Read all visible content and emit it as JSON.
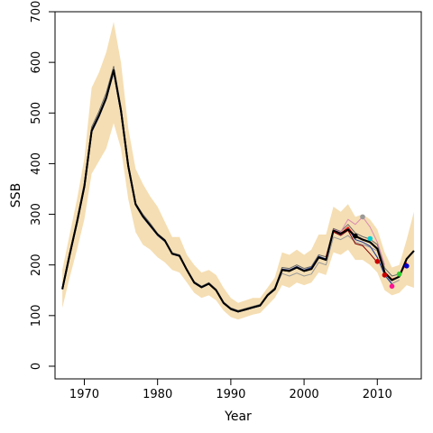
{
  "chart_data": {
    "type": "line",
    "title": "",
    "xlabel": "Year",
    "ylabel": "SSB",
    "xlim": [
      1966,
      2016
    ],
    "ylim": [
      -25,
      700
    ],
    "xticks": [
      1970,
      1980,
      1990,
      2000,
      2010
    ],
    "yticks": [
      0,
      100,
      200,
      300,
      400,
      500,
      600,
      700
    ],
    "grid": false,
    "legend": "none",
    "colors": {
      "band": "#f5deb3",
      "main_line": "#000000",
      "retro_lines": [
        "#666666",
        "#999999",
        "#1f3a93",
        "#d98cb3",
        "#800000"
      ],
      "retro_red": "#ff0000",
      "peel_points": [
        "#000000",
        "#999999",
        "#00ced1",
        "#cc0000",
        "#cc0000",
        "#ff1493",
        "#32cd32",
        "#0000cd"
      ]
    },
    "band_upper": {
      "x": [
        1967,
        1968,
        1969,
        1970,
        1971,
        1972,
        1973,
        1974,
        1975,
        1976,
        1977,
        1978,
        1979,
        1980,
        1981,
        1982,
        1983,
        1984,
        1985,
        1986,
        1987,
        1988,
        1989,
        1990,
        1991,
        1992,
        1993,
        1994,
        1995,
        1996,
        1997,
        1998,
        1999,
        2000,
        2001,
        2002,
        2003,
        2004,
        2005,
        2006,
        2007,
        2008,
        2009,
        2010,
        2011,
        2012,
        2013,
        2014,
        2015
      ],
      "y": [
        190,
        260,
        330,
        410,
        550,
        580,
        620,
        680,
        600,
        470,
        390,
        360,
        335,
        315,
        285,
        255,
        255,
        220,
        200,
        185,
        190,
        180,
        155,
        135,
        125,
        130,
        135,
        135,
        155,
        175,
        225,
        220,
        230,
        220,
        230,
        260,
        260,
        315,
        305,
        320,
        295,
        300,
        290,
        270,
        225,
        195,
        200,
        250,
        305
      ]
    },
    "band_lower": {
      "x": [
        1967,
        1968,
        1969,
        1970,
        1971,
        1972,
        1973,
        1974,
        1975,
        1976,
        1977,
        1978,
        1979,
        1980,
        1981,
        1982,
        1983,
        1984,
        1985,
        1986,
        1987,
        1988,
        1989,
        1990,
        1991,
        1992,
        1993,
        1994,
        1995,
        1996,
        1997,
        1998,
        1999,
        2000,
        2001,
        2002,
        2003,
        2004,
        2005,
        2006,
        2007,
        2008,
        2009,
        2010,
        2011,
        2012,
        2013,
        2014,
        2015
      ],
      "y": [
        115,
        175,
        230,
        290,
        380,
        405,
        430,
        480,
        430,
        330,
        265,
        240,
        230,
        215,
        205,
        190,
        185,
        165,
        145,
        135,
        140,
        130,
        110,
        97,
        92,
        97,
        102,
        105,
        120,
        135,
        160,
        155,
        165,
        160,
        165,
        185,
        180,
        225,
        220,
        230,
        210,
        210,
        200,
        185,
        150,
        140,
        145,
        160,
        155
      ]
    },
    "series": [
      {
        "x": [
          1967,
          1968,
          1969,
          1970,
          1971,
          1972,
          1973,
          1974,
          1975,
          1976,
          1977,
          1978,
          1979,
          1980,
          1981,
          1982,
          1983,
          1984,
          1985,
          1986,
          1987,
          1988,
          1989,
          1990,
          1991,
          1992,
          1993,
          1994,
          1995,
          1996,
          1997,
          1998,
          1999,
          2000,
          2001,
          2002,
          2003,
          2004,
          2005,
          2006,
          2007,
          2008,
          2009,
          2010,
          2011,
          2012,
          2013,
          2014,
          2015
        ],
        "y": [
          152,
          220,
          285,
          355,
          465,
          495,
          530,
          585,
          505,
          395,
          320,
          296,
          278,
          260,
          248,
          222,
          218,
          190,
          165,
          156,
          163,
          150,
          125,
          113,
          108,
          112,
          116,
          120,
          140,
          152,
          190,
          188,
          195,
          188,
          192,
          215,
          210,
          268,
          262,
          270,
          257,
          250,
          245,
          232,
          185,
          170,
          177,
          212,
          228
        ]
      },
      {
        "x": [
          1967,
          1968,
          1969,
          1970,
          1971,
          1972,
          1973,
          1974,
          1975,
          1976,
          1977,
          1978,
          1979,
          1980,
          1981,
          1982,
          1983,
          1984,
          1985,
          1986,
          1987,
          1988,
          1989,
          1990,
          1991,
          1992,
          1993,
          1994,
          1995,
          1996,
          1997,
          1998,
          1999,
          2000,
          2001,
          2002,
          2003,
          2004,
          2005,
          2006,
          2007,
          2008,
          2009,
          2010,
          2011,
          2012,
          2013,
          2014
        ],
        "y": [
          154,
          224,
          290,
          362,
          472,
          503,
          540,
          592,
          512,
          398,
          322,
          300,
          282,
          262,
          250,
          224,
          220,
          192,
          167,
          158,
          165,
          152,
          127,
          115,
          110,
          114,
          118,
          122,
          142,
          155,
          195,
          193,
          200,
          193,
          197,
          220,
          216,
          272,
          266,
          280,
          263,
          256,
          251,
          240,
          194,
          178,
          182,
          203
        ]
      },
      {
        "x": [
          1967,
          1968,
          1969,
          1970,
          1971,
          1972,
          1973,
          1974,
          1975,
          1976,
          1977,
          1978,
          1979,
          1980,
          1981,
          1982,
          1983,
          1984,
          1985,
          1986,
          1987,
          1988,
          1989,
          1990,
          1991,
          1992,
          1993,
          1994,
          1995,
          1996,
          1997,
          1998,
          1999,
          2000,
          2001,
          2002,
          2003,
          2004,
          2005,
          2006,
          2007,
          2008,
          2009,
          2010,
          2011,
          2012,
          2013
        ],
        "y": [
          153,
          221,
          287,
          358,
          468,
          498,
          534,
          588,
          508,
          396,
          321,
          298,
          280,
          261,
          249,
          223,
          219,
          191,
          166,
          157,
          164,
          151,
          126,
          114,
          109,
          113,
          117,
          121,
          141,
          153,
          183,
          178,
          184,
          178,
          182,
          205,
          200,
          255,
          250,
          258,
          245,
          240,
          235,
          228,
          185,
          163,
          170
        ]
      },
      {
        "x": [
          1967,
          1968,
          1969,
          1970,
          1971,
          1972,
          1973,
          1974,
          1975,
          1976,
          1977,
          1978,
          1979,
          1980,
          1981,
          1982,
          1983,
          1984,
          1985,
          1986,
          1987,
          1988,
          1989,
          1990,
          1991,
          1992,
          1993,
          1994,
          1995,
          1996,
          1997,
          1998,
          1999,
          2000,
          2001,
          2002,
          2003,
          2004,
          2005,
          2006,
          2007,
          2008,
          2009,
          2010,
          2011,
          2012
        ],
        "y": [
          152,
          219,
          284,
          353,
          462,
          492,
          527,
          580,
          500,
          392,
          318,
          294,
          276,
          258,
          246,
          221,
          217,
          189,
          164,
          155,
          162,
          149,
          124,
          112,
          107,
          111,
          115,
          119,
          139,
          151,
          192,
          190,
          197,
          190,
          195,
          217,
          212,
          265,
          260,
          272,
          250,
          245,
          237,
          215,
          180,
          162
        ]
      },
      {
        "x": [
          2003,
          2004,
          2005,
          2006,
          2007,
          2008,
          2009,
          2010,
          2011
        ],
        "y": [
          214,
          270,
          265,
          290,
          280,
          295,
          275,
          245,
          200
        ]
      },
      {
        "x": [
          2003,
          2004,
          2005,
          2006,
          2007,
          2008,
          2009,
          2010
        ],
        "y": [
          210,
          265,
          258,
          268,
          242,
          238,
          222,
          205
        ]
      },
      {
        "x": [
          2003,
          2004,
          2005,
          2006,
          2007,
          2008,
          2009,
          2010,
          2011,
          2012,
          2013,
          2014
        ],
        "y": [
          216,
          266,
          262,
          275,
          256,
          251,
          246,
          233,
          186,
          172,
          177,
          205
        ]
      }
    ],
    "peel_points": {
      "x": [
        2007,
        2008,
        2009,
        2010,
        2011,
        2012,
        2013,
        2014
      ],
      "y": [
        257,
        295,
        252,
        207,
        180,
        158,
        182,
        198
      ]
    }
  }
}
